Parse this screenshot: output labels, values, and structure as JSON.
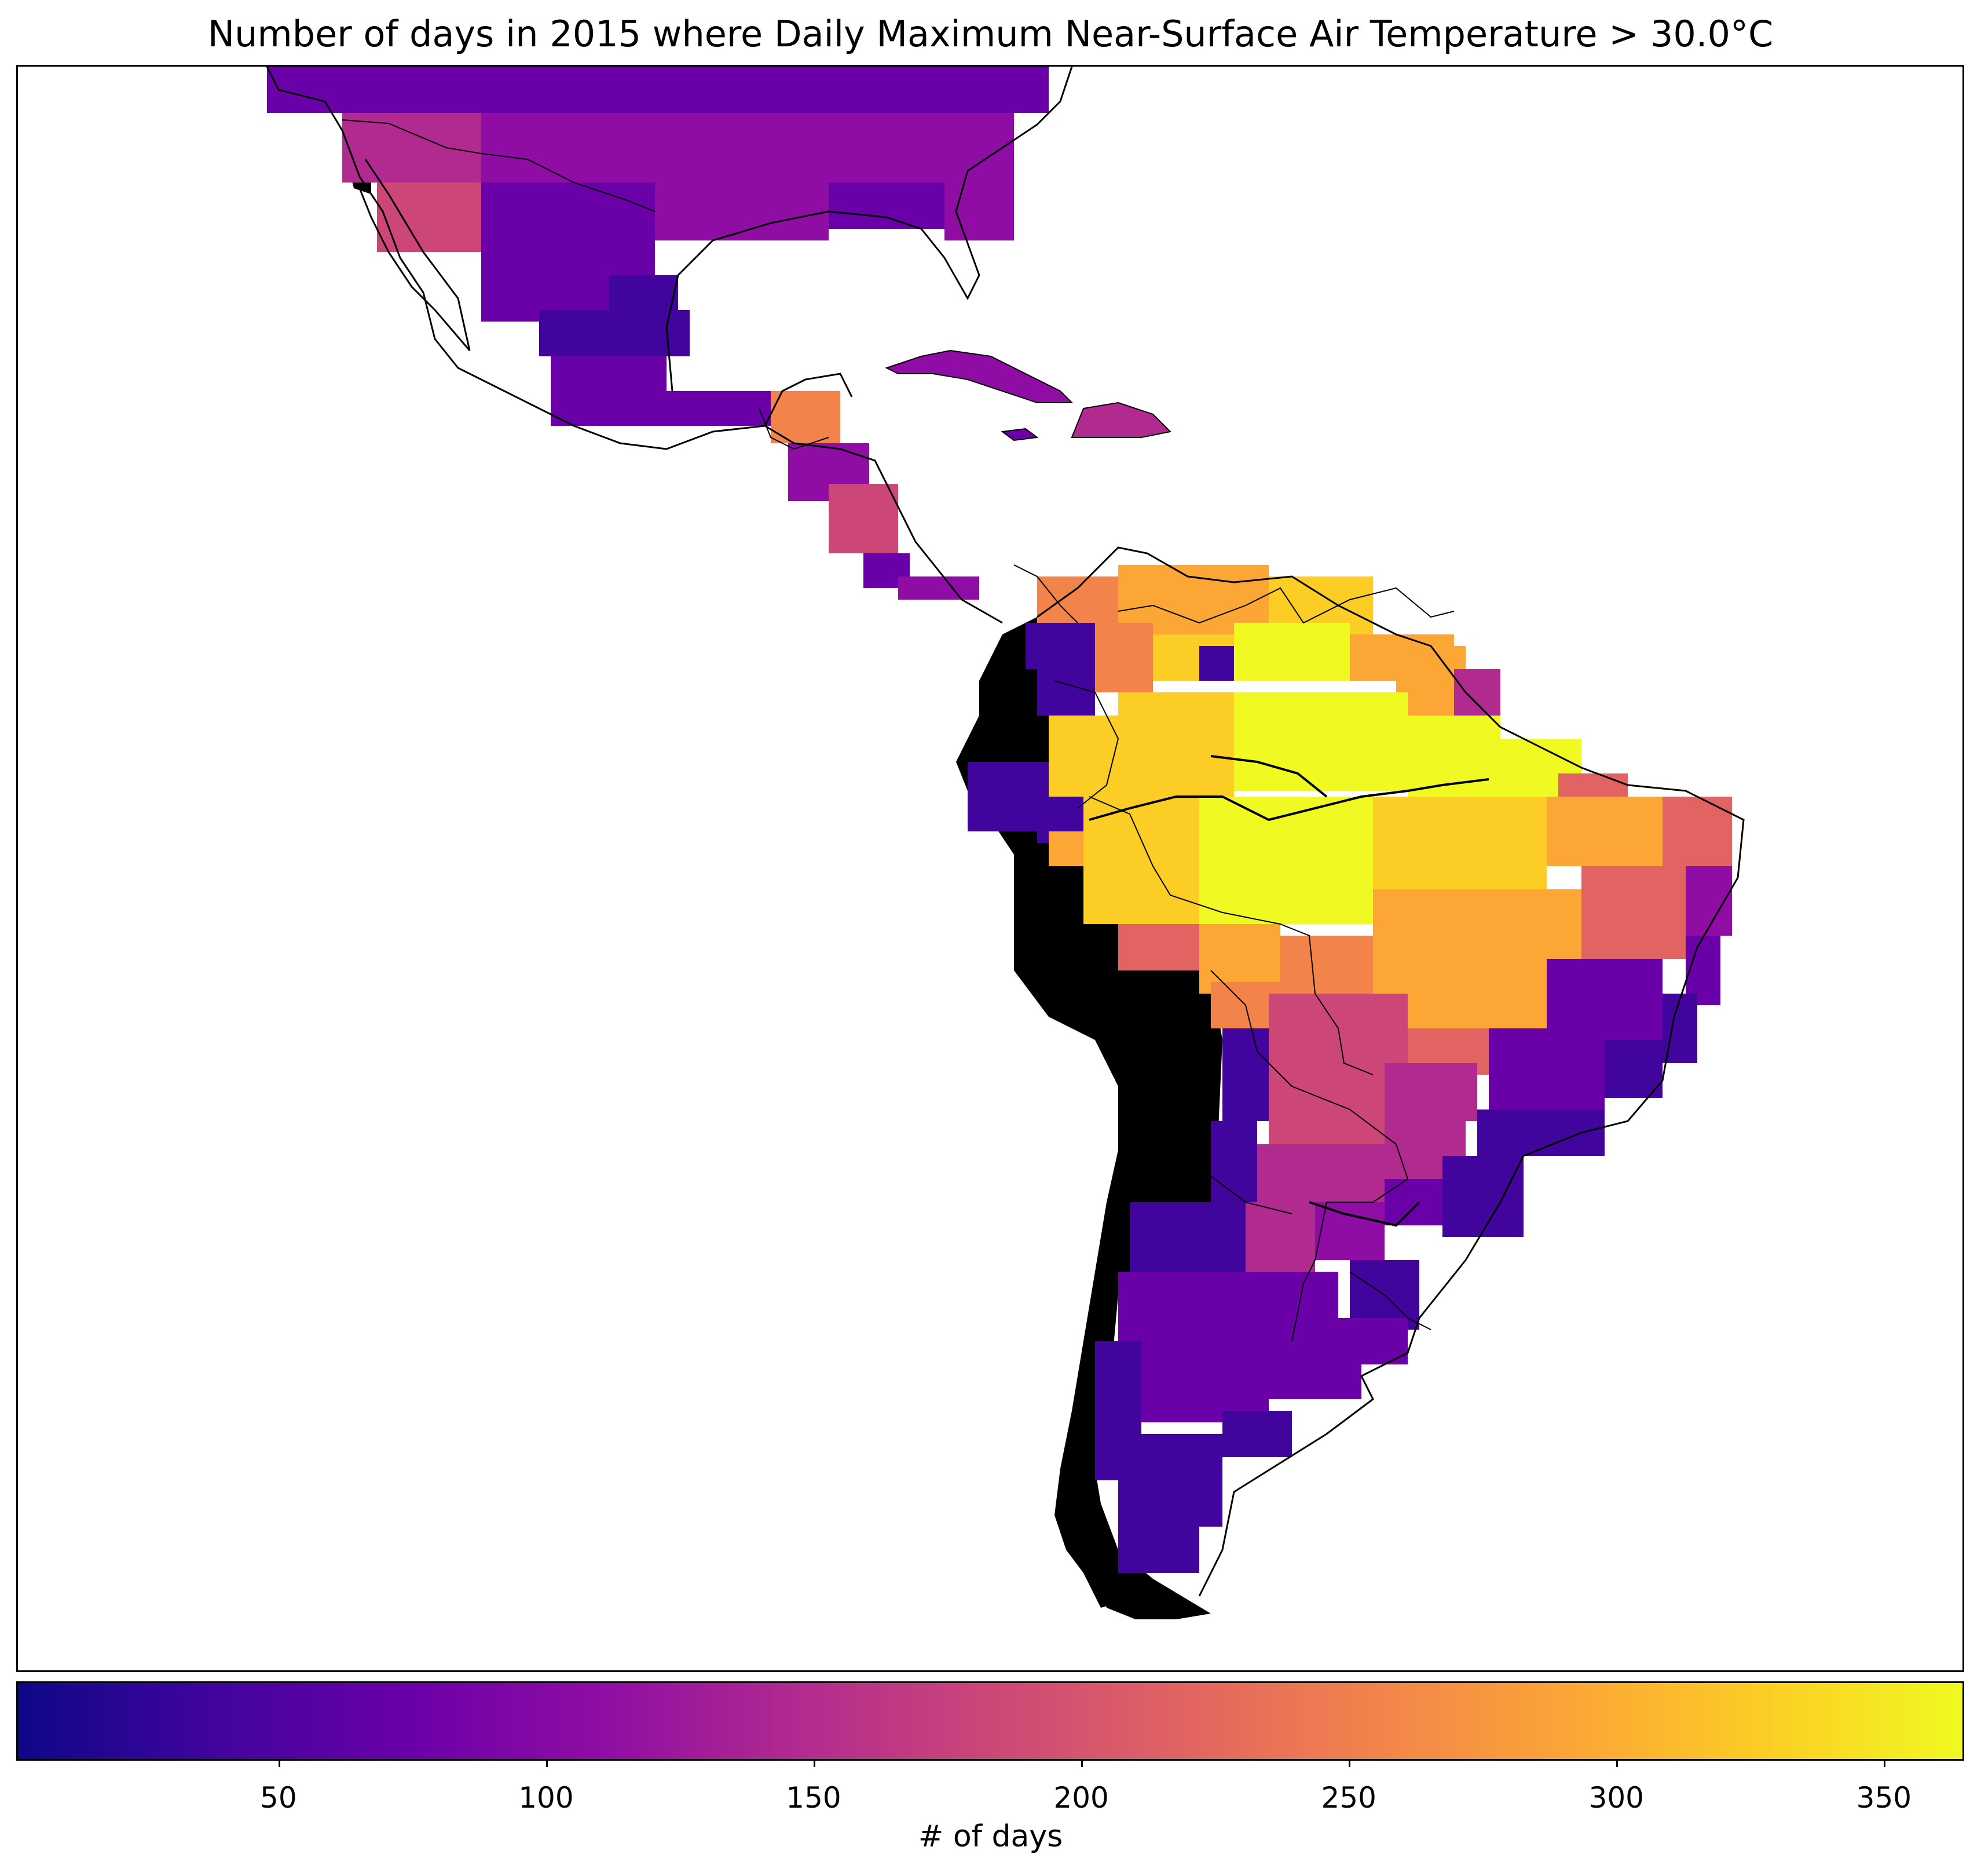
{
  "title": "Number of days in 2015 where Daily Maximum Near-Surface Air Temperature > 30.0°C",
  "colorbar": {
    "label": "# of days",
    "range": [
      1,
      365
    ],
    "ticks": [
      {
        "value": 50,
        "label": "50"
      },
      {
        "value": 100,
        "label": "100"
      },
      {
        "value": 150,
        "label": "150"
      },
      {
        "value": 200,
        "label": "200"
      },
      {
        "value": 250,
        "label": "250"
      },
      {
        "value": 300,
        "label": "300"
      },
      {
        "value": 350,
        "label": "350"
      }
    ],
    "colormap": "plasma",
    "colormap_stops": [
      "#0d0887",
      "#41049d",
      "#6a00a8",
      "#8f0da4",
      "#b12a90",
      "#cc4778",
      "#e16462",
      "#f2844b",
      "#fca636",
      "#fcce25",
      "#f0f921"
    ]
  },
  "map": {
    "region": "Central and South America",
    "land_no_data_color": "#000000",
    "ocean_color": "#ffffff"
  }
}
